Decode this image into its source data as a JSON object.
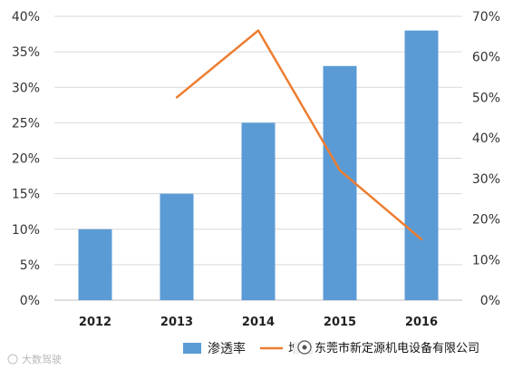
{
  "chart_data": {
    "type": "bar",
    "categories": [
      "2012",
      "2013",
      "2014",
      "2015",
      "2016"
    ],
    "series": [
      {
        "name": "渗透率",
        "type": "bar",
        "axis": "left",
        "color": "#5B9BD5",
        "values": [
          10,
          15,
          25,
          33,
          38
        ]
      },
      {
        "name": "增速",
        "type": "line",
        "axis": "right",
        "color": "#ED7D31",
        "values": [
          null,
          50,
          66.5,
          32,
          15
        ]
      }
    ],
    "y_left": {
      "ylim": [
        0,
        40
      ],
      "ticks": [
        "0%",
        "5%",
        "10%",
        "15%",
        "20%",
        "25%",
        "30%",
        "35%",
        "40%"
      ]
    },
    "y_right": {
      "ylim": [
        0,
        70
      ],
      "ticks": [
        "0%",
        "10%",
        "20%",
        "30%",
        "40%",
        "50%",
        "60%",
        "70%"
      ]
    },
    "grid": true,
    "legend": "bottom-center"
  },
  "watermark": {
    "left_text": "大数驾驶",
    "company": "东莞市新定源机电设备有限公司"
  }
}
